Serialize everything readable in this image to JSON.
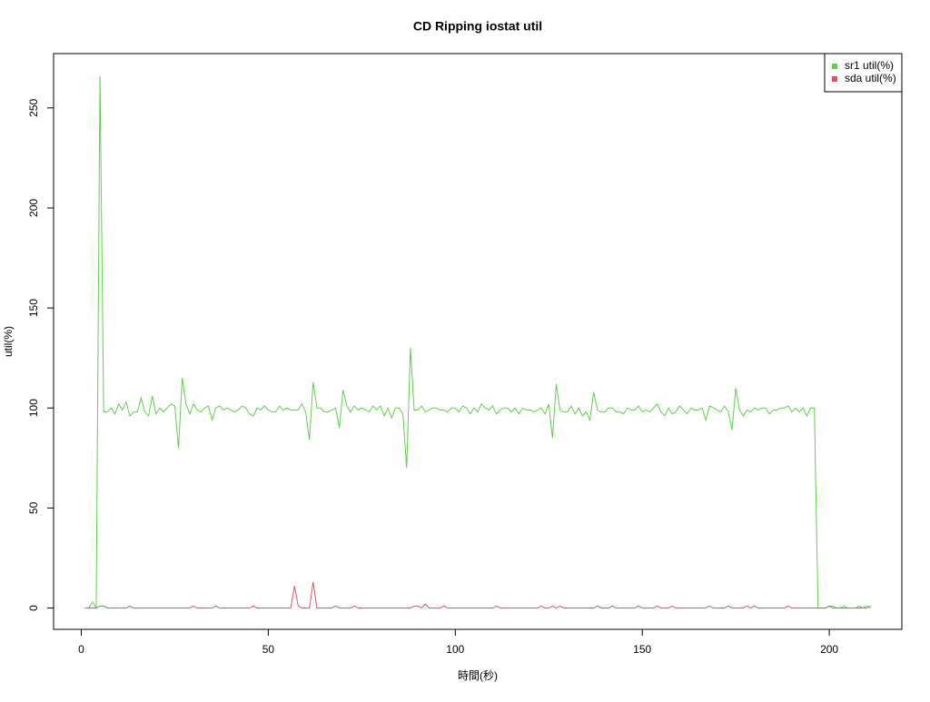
{
  "chart_data": {
    "type": "line",
    "title": "CD Ripping iostat util",
    "xlabel": "時間(秒)",
    "ylabel": "util(%)",
    "x": [
      1,
      2,
      3,
      4,
      5,
      6,
      7,
      8,
      9,
      10,
      11,
      12,
      13,
      14,
      15,
      16,
      17,
      18,
      19,
      20,
      21,
      22,
      23,
      24,
      25,
      26,
      27,
      28,
      29,
      30,
      31,
      32,
      33,
      34,
      35,
      36,
      37,
      38,
      39,
      40,
      41,
      42,
      43,
      44,
      45,
      46,
      47,
      48,
      49,
      50,
      51,
      52,
      53,
      54,
      55,
      56,
      57,
      58,
      59,
      60,
      61,
      62,
      63,
      64,
      65,
      66,
      67,
      68,
      69,
      70,
      71,
      72,
      73,
      74,
      75,
      76,
      77,
      78,
      79,
      80,
      81,
      82,
      83,
      84,
      85,
      86,
      87,
      88,
      89,
      90,
      91,
      92,
      93,
      94,
      95,
      96,
      97,
      98,
      99,
      100,
      101,
      102,
      103,
      104,
      105,
      106,
      107,
      108,
      109,
      110,
      111,
      112,
      113,
      114,
      115,
      116,
      117,
      118,
      119,
      120,
      121,
      122,
      123,
      124,
      125,
      126,
      127,
      128,
      129,
      130,
      131,
      132,
      133,
      134,
      135,
      136,
      137,
      138,
      139,
      140,
      141,
      142,
      143,
      144,
      145,
      146,
      147,
      148,
      149,
      150,
      151,
      152,
      153,
      154,
      155,
      156,
      157,
      158,
      159,
      160,
      161,
      162,
      163,
      164,
      165,
      166,
      167,
      168,
      169,
      170,
      171,
      172,
      173,
      174,
      175,
      176,
      177,
      178,
      179,
      180,
      181,
      182,
      183,
      184,
      185,
      186,
      187,
      188,
      189,
      190,
      191,
      192,
      193,
      194,
      195,
      196,
      197,
      198,
      199,
      200,
      201,
      202,
      203,
      204,
      205,
      206,
      207,
      208,
      209,
      210,
      211
    ],
    "series": [
      {
        "name": "sr1 util(%)",
        "color": "#61D04F",
        "values": [
          0,
          0,
          3,
          0,
          266,
          98,
          98,
          100,
          97,
          102,
          99,
          103,
          96,
          98,
          98,
          105,
          98,
          96,
          106,
          97,
          100,
          98,
          100,
          102,
          101,
          80,
          115,
          102,
          97,
          102,
          99,
          98,
          100,
          101,
          94,
          100,
          101,
          99,
          100,
          99,
          98,
          99,
          101,
          100,
          97,
          96,
          100,
          99,
          101,
          99,
          98,
          98,
          101,
          99,
          100,
          99,
          99,
          99,
          102,
          98,
          84,
          113,
          100,
          100,
          98,
          98,
          99,
          100,
          90,
          109,
          101,
          98,
          101,
          99,
          100,
          99,
          98,
          101,
          99,
          101,
          96,
          100,
          95,
          100,
          100,
          97,
          70,
          130,
          99,
          99,
          101,
          98,
          99,
          100,
          100,
          99,
          99,
          98,
          100,
          100,
          98,
          101,
          100,
          97,
          100,
          98,
          102,
          100,
          99,
          101,
          97,
          99,
          100,
          100,
          98,
          100,
          97,
          100,
          99,
          99,
          98,
          99,
          100,
          97,
          102,
          85,
          112,
          99,
          98,
          98,
          101,
          97,
          100,
          96,
          98,
          94,
          108,
          99,
          98,
          98,
          100,
          100,
          98,
          98,
          97,
          100,
          99,
          99,
          101,
          98,
          99,
          98,
          100,
          102,
          98,
          96,
          100,
          97,
          98,
          101,
          99,
          97,
          100,
          99,
          99,
          100,
          94,
          101,
          100,
          99,
          98,
          101,
          98,
          89,
          110,
          99,
          96,
          99,
          98,
          100,
          99,
          100,
          100,
          97,
          99,
          99,
          100,
          100,
          101,
          98,
          100,
          98,
          100,
          96,
          100,
          100,
          0,
          0,
          0,
          1,
          1,
          0,
          0,
          1,
          0,
          0,
          0,
          1,
          0,
          1,
          0
        ]
      },
      {
        "name": "sda util(%)",
        "color": "#DF536B",
        "values": [
          0,
          0,
          0,
          0,
          1,
          1,
          0,
          0,
          0,
          0,
          0,
          0,
          1,
          0,
          0,
          0,
          0,
          0,
          0,
          0,
          0,
          0,
          0,
          0,
          0,
          0,
          0,
          0,
          0,
          1,
          0,
          0,
          0,
          0,
          0,
          1,
          0,
          0,
          0,
          0,
          0,
          0,
          0,
          0,
          0,
          1,
          0,
          0,
          0,
          0,
          0,
          0,
          0,
          0,
          0,
          0,
          11,
          1,
          0,
          0,
          0,
          13,
          0,
          0,
          0,
          0,
          0,
          1,
          0,
          0,
          0,
          0,
          1,
          0,
          0,
          0,
          0,
          0,
          0,
          0,
          0,
          0,
          0,
          0,
          0,
          0,
          0,
          0,
          1,
          1,
          0,
          2,
          0,
          0,
          0,
          0,
          1,
          0,
          0,
          0,
          0,
          0,
          0,
          0,
          0,
          0,
          0,
          0,
          0,
          0,
          1,
          0,
          0,
          0,
          0,
          0,
          0,
          0,
          0,
          0,
          0,
          0,
          1,
          0,
          0,
          1,
          0,
          1,
          0,
          0,
          0,
          0,
          0,
          0,
          0,
          0,
          0,
          1,
          0,
          0,
          0,
          1,
          0,
          0,
          0,
          0,
          0,
          0,
          1,
          0,
          0,
          0,
          0,
          1,
          0,
          0,
          0,
          1,
          0,
          0,
          0,
          0,
          0,
          0,
          0,
          0,
          0,
          1,
          0,
          0,
          0,
          0,
          1,
          0,
          0,
          0,
          0,
          1,
          0,
          1,
          0,
          0,
          0,
          0,
          0,
          0,
          0,
          0,
          1,
          0,
          0,
          0,
          0,
          0,
          0,
          0,
          0,
          0,
          0,
          1,
          0,
          0,
          0,
          0,
          0,
          0,
          0,
          0,
          0,
          0,
          1
        ]
      }
    ],
    "xlim": [
      -7.4,
      219.4
    ],
    "ylim": [
      -10.66,
      277.16
    ],
    "xticks": [
      0,
      50,
      100,
      150,
      200
    ],
    "yticks": [
      0,
      50,
      100,
      150,
      200,
      250
    ],
    "legend": "topright"
  }
}
